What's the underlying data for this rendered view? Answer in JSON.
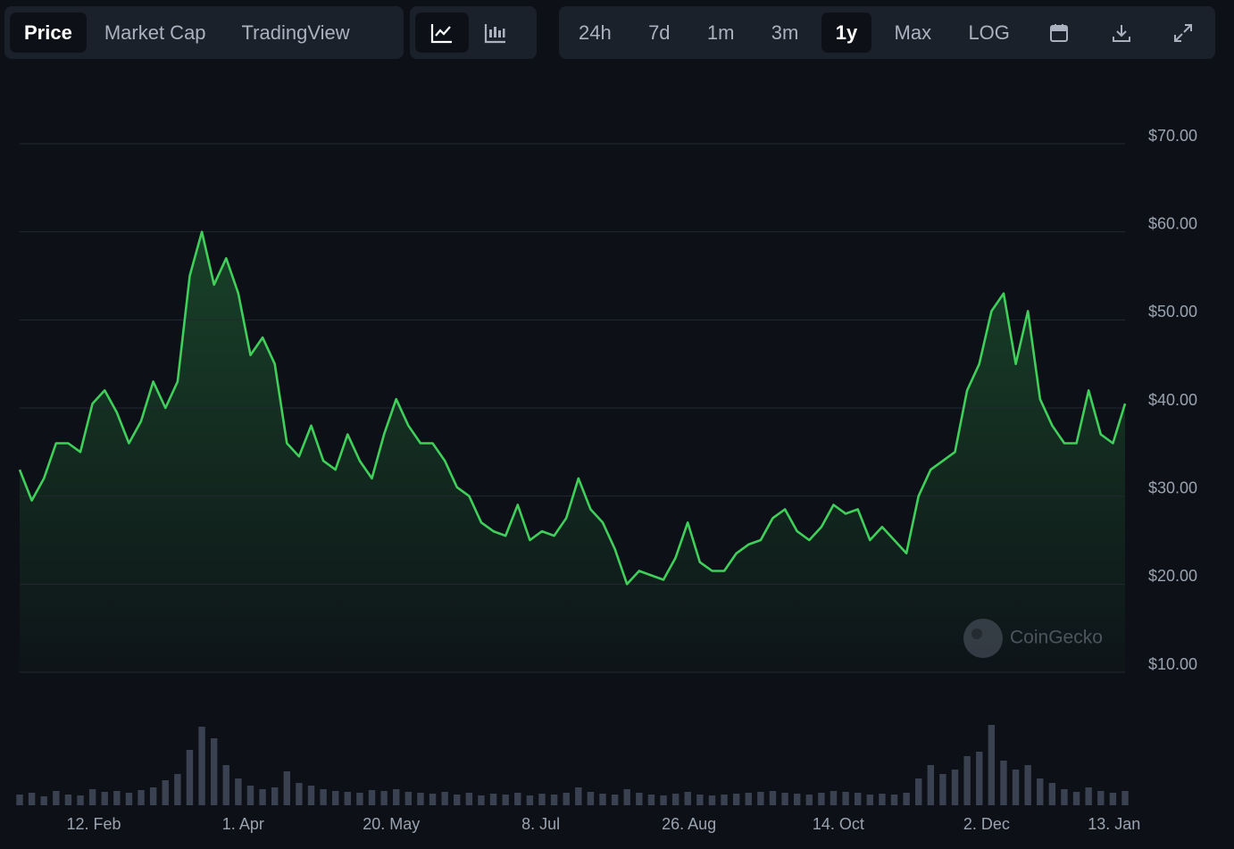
{
  "toolbar": {
    "tabs": [
      "Price",
      "Market Cap",
      "TradingView"
    ],
    "ranges": [
      "24h",
      "7d",
      "1m",
      "3m",
      "1y",
      "Max",
      "LOG"
    ]
  },
  "watermark": "CoinGecko",
  "chart_data": {
    "type": "line",
    "values": [
      33,
      29.5,
      32,
      36,
      36,
      35,
      40.5,
      42,
      39.5,
      36,
      38.5,
      43,
      40,
      43,
      55,
      60,
      54,
      57,
      53,
      46,
      48,
      45,
      36,
      34.5,
      38,
      34,
      33,
      37,
      34,
      32,
      37,
      41,
      38,
      36,
      36,
      34,
      31,
      30,
      27,
      26,
      25.5,
      29,
      25,
      26,
      25.5,
      27.5,
      32,
      28.5,
      27,
      24,
      20,
      21.5,
      21,
      20.5,
      23,
      27,
      22.5,
      21.5,
      21.5,
      23.5,
      24.5,
      25,
      27.5,
      28.5,
      26,
      25,
      26.5,
      29,
      28,
      28.5,
      25,
      26.5,
      25,
      23.5,
      30,
      33,
      34,
      35,
      42,
      45,
      51,
      53,
      45,
      51,
      41,
      38,
      36,
      36,
      42,
      37,
      36,
      40.5
    ],
    "color": "#3fcf5a",
    "volume": [
      12,
      14,
      10,
      16,
      12,
      11,
      18,
      15,
      16,
      14,
      17,
      20,
      28,
      35,
      62,
      88,
      75,
      45,
      30,
      22,
      18,
      20,
      38,
      25,
      22,
      18,
      16,
      15,
      14,
      17,
      16,
      18,
      15,
      14,
      13,
      15,
      12,
      14,
      11,
      13,
      12,
      14,
      11,
      13,
      12,
      14,
      20,
      15,
      13,
      12,
      18,
      14,
      12,
      11,
      13,
      15,
      12,
      11,
      12,
      13,
      14,
      15,
      16,
      14,
      13,
      12,
      14,
      16,
      15,
      14,
      12,
      13,
      12,
      14,
      30,
      45,
      35,
      40,
      55,
      60,
      90,
      50,
      40,
      45,
      30,
      25,
      18,
      15,
      20,
      16,
      14,
      16
    ],
    "volume_color": "#3a4150",
    "ylim": [
      10,
      70
    ],
    "yticks": [
      {
        "value": 10,
        "label": "$10.00"
      },
      {
        "value": 20,
        "label": "$20.00"
      },
      {
        "value": 30,
        "label": "$30.00"
      },
      {
        "value": 40,
        "label": "$40.00"
      },
      {
        "value": 50,
        "label": "$50.00"
      },
      {
        "value": 60,
        "label": "$60.00"
      },
      {
        "value": 70,
        "label": "$70.00"
      }
    ],
    "xlim": [
      0,
      91
    ],
    "xticks": [
      {
        "value": 6.1,
        "label": "12. Feb"
      },
      {
        "value": 18.4,
        "label": "1. Apr"
      },
      {
        "value": 30.6,
        "label": "20. May"
      },
      {
        "value": 42.9,
        "label": "8. Jul"
      },
      {
        "value": 55.1,
        "label": "26. Aug"
      },
      {
        "value": 67.4,
        "label": "14. Oct"
      },
      {
        "value": 79.6,
        "label": "2. Dec"
      },
      {
        "value": 90.1,
        "label": "13. Jan"
      }
    ],
    "grid": true
  }
}
